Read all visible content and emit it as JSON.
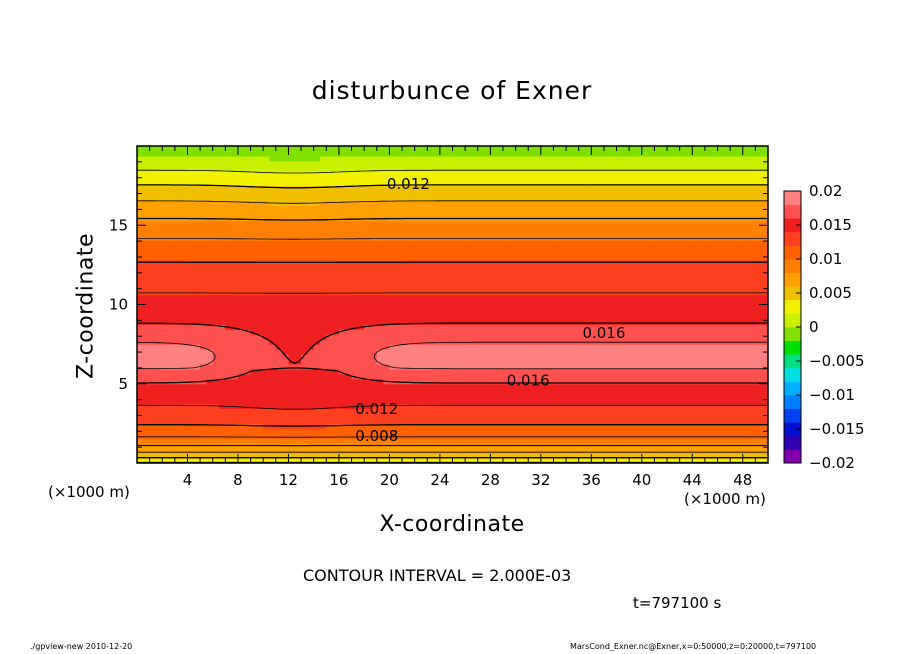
{
  "chart_data": {
    "type": "heatmap",
    "subtype": "filled-contour",
    "title": "disturbunce of Exner",
    "xlabel": "X-coordinate",
    "ylabel": "Z-coordinate",
    "x_unit": "(×1000 m)",
    "y_unit": "(×1000 m)",
    "xlim": [
      0,
      50
    ],
    "ylim": [
      0,
      20
    ],
    "x_ticks": [
      4,
      8,
      12,
      16,
      20,
      24,
      28,
      32,
      36,
      40,
      44,
      48
    ],
    "y_ticks": [
      5,
      10,
      15
    ],
    "contour_interval_text": "CONTOUR INTERVAL = 2.000E-03",
    "time_text": "t=797100 s",
    "colorbar": {
      "min": -0.02,
      "max": 0.02,
      "tick_values": [
        0.02,
        0.015,
        0.01,
        0.005,
        0,
        -0.005,
        -0.01,
        -0.015,
        -0.02
      ],
      "tick_labels": [
        "0.02",
        "0.015",
        "0.01",
        "0.005",
        "0",
        "−0.005",
        "−0.01",
        "−0.015",
        "−0.02"
      ],
      "colors": [
        "#8000b0",
        "#3000b0",
        "#0010d0",
        "#0040f0",
        "#0080ff",
        "#00b0ff",
        "#00e0e0",
        "#00e080",
        "#00e000",
        "#80e000",
        "#c8f000",
        "#f0f000",
        "#f0c000",
        "#ffa000",
        "#ff8000",
        "#ff6000",
        "#ff4020",
        "#f02020",
        "#ff5050",
        "#ff8080"
      ]
    },
    "contour_labels": [
      {
        "text": "0.012",
        "x": 21.5,
        "z": 17.6
      },
      {
        "text": "0.016",
        "x": 37.0,
        "z": 8.2
      },
      {
        "text": "0.016",
        "x": 31.0,
        "z": 5.2
      },
      {
        "text": "0.012",
        "x": 19.0,
        "z": 3.4
      },
      {
        "text": "0.008",
        "x": 19.0,
        "z": 1.7
      }
    ]
  },
  "footer": {
    "left": "./gpview-new   2010-12-20",
    "right": "MarsCond_Exner.nc@Exner,x=0:50000,z=0:20000,t=797100"
  }
}
